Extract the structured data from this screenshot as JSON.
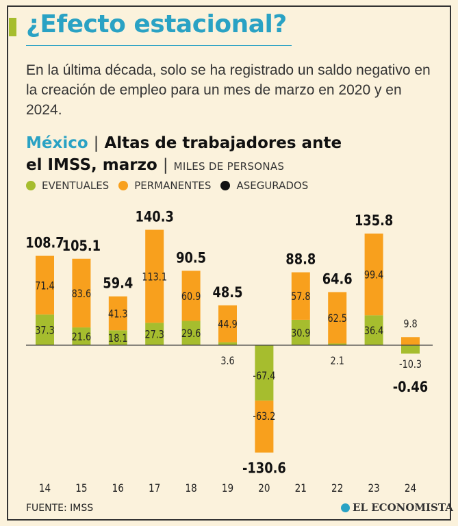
{
  "header": {
    "title": "¿Efecto estacional?",
    "subtitle": "En la última década, solo se ha registrado un saldo negativo en la creación de empleo para un mes de marzo en 2020 y en 2024."
  },
  "chart_header": {
    "country": "México",
    "separator": "|",
    "line1": "Altas de trabajadores ante",
    "line2": "el IMSS, marzo",
    "units": "MILES DE PERSONAS"
  },
  "legend": {
    "eventuales": "EVENTUALES",
    "permanentes": "PERMANENTES",
    "asegurados": "ASEGURADOS"
  },
  "colors": {
    "eventuales": "#a6bd2e",
    "permanentes": "#f8a01d",
    "asegurados": "#111111",
    "accent": "#2aa2c4",
    "background": "#fbf2dc"
  },
  "chart_data": {
    "type": "bar",
    "stacked": true,
    "title": "Altas de trabajadores ante el IMSS, marzo",
    "ylabel": "Miles de personas",
    "xlabel": "",
    "ylim": [
      -135,
      145
    ],
    "categories": [
      "14",
      "15",
      "16",
      "17",
      "18",
      "19",
      "20",
      "21",
      "22",
      "23",
      "24"
    ],
    "series": [
      {
        "name": "EVENTUALES",
        "values": [
          37.3,
          21.6,
          18.1,
          27.3,
          29.6,
          3.6,
          -67.4,
          30.9,
          2.1,
          36.4,
          -10.3
        ],
        "labels": [
          "37.3",
          "21.6",
          "18.1",
          "27.3",
          "29.6",
          "3.6",
          "-67.4",
          "30.9",
          "2.1",
          "36.4",
          "-10.3"
        ]
      },
      {
        "name": "PERMANENTES",
        "values": [
          71.4,
          83.6,
          41.3,
          113.1,
          60.9,
          44.9,
          -63.2,
          57.8,
          62.5,
          99.4,
          9.8
        ],
        "labels": [
          "71.4",
          "83.6",
          "41.3",
          "113.1",
          "60.9",
          "44.9",
          "-63.2",
          "57.8",
          "62.5",
          "99.4",
          "9.8"
        ]
      }
    ],
    "totals": [
      108.7,
      105.1,
      59.4,
      140.3,
      90.5,
      48.5,
      -130.6,
      88.8,
      64.6,
      135.8,
      -0.46
    ],
    "total_labels": [
      "108.7",
      "105.1",
      "59.4",
      "140.3",
      "90.5",
      "48.5",
      "-130.6",
      "88.8",
      "64.6",
      "135.8",
      "-0.46"
    ]
  },
  "footer": {
    "source": "FUENTE: IMSS",
    "brand": "EL ECONOMISTA"
  }
}
